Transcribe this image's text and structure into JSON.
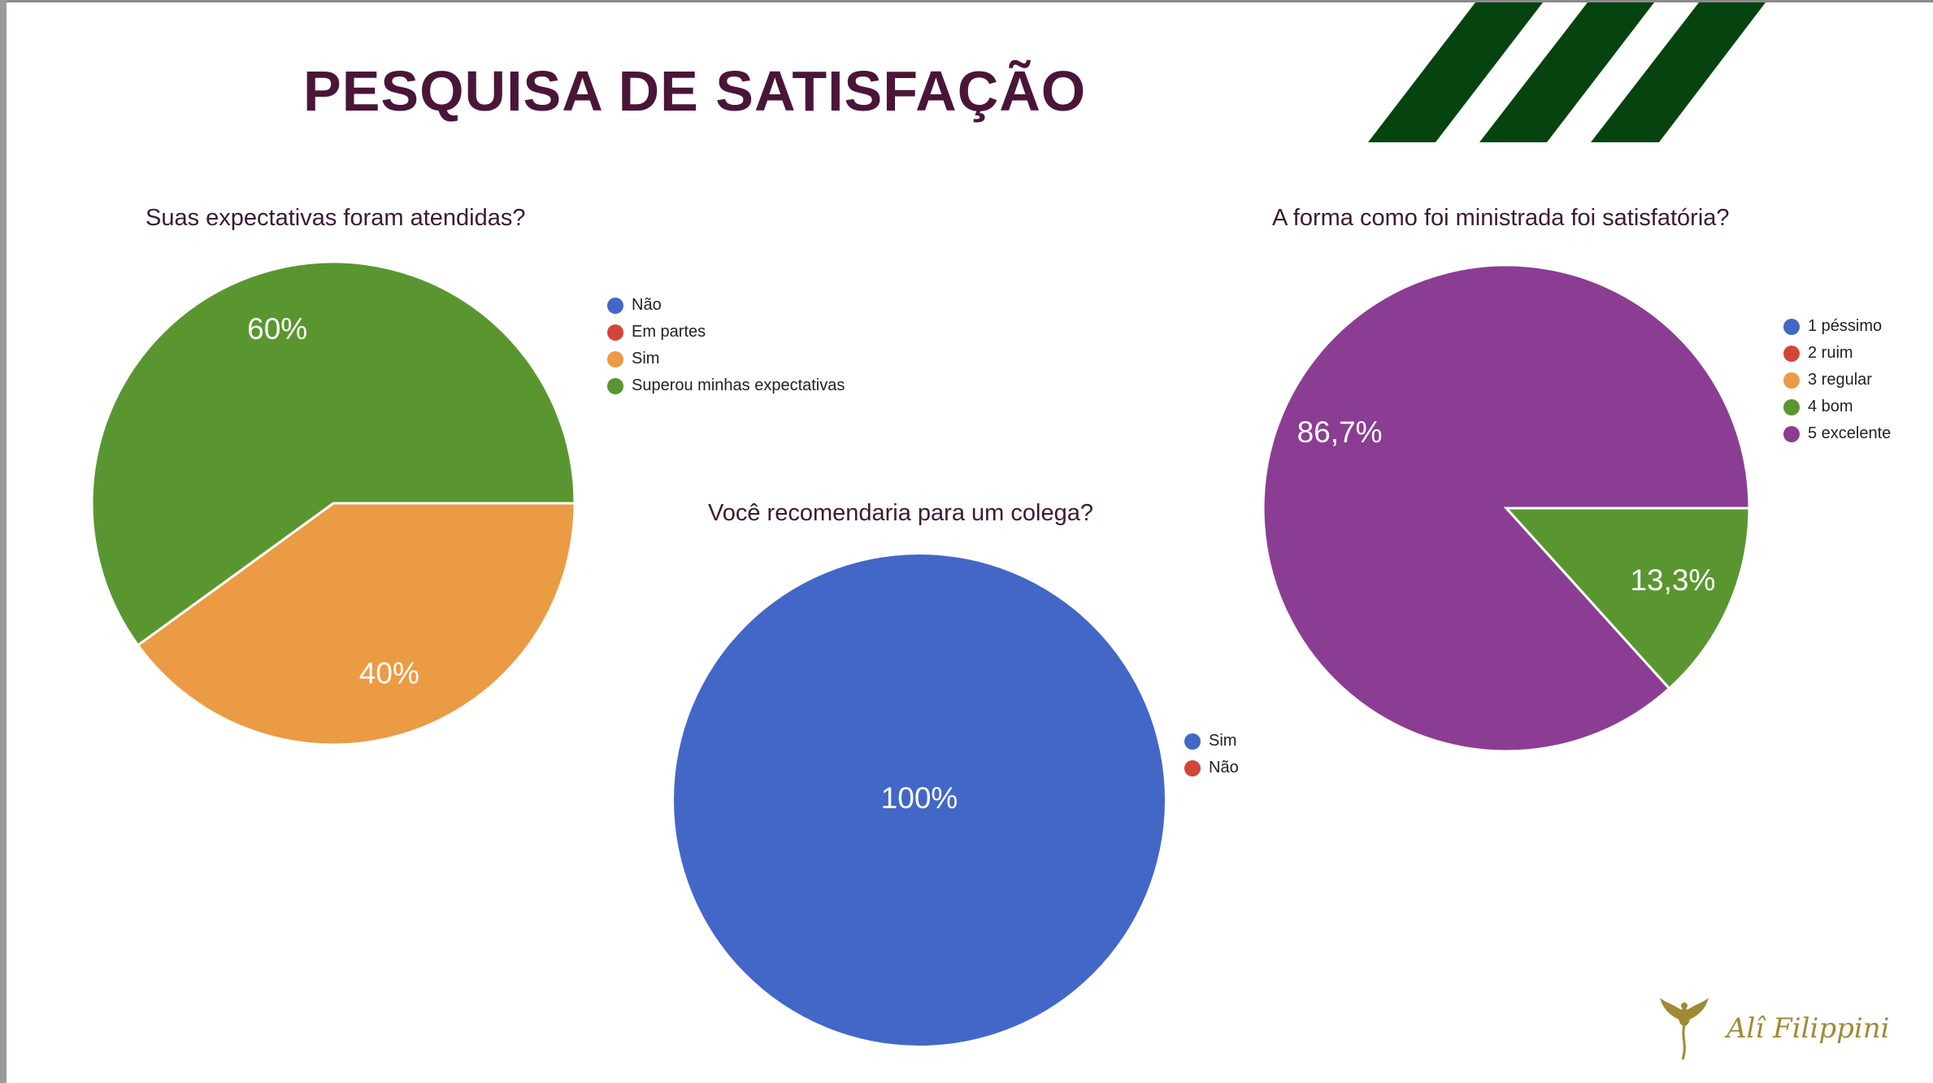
{
  "title": "PESQUISA DE SATISFAÇÃO",
  "brand_logo": "Alî Filippini",
  "colors": {
    "title": "#4a1538",
    "stripes": "#05440f",
    "blue": "#4267c6",
    "red": "#d2463a",
    "orange": "#eb9b44",
    "green": "#5a9630",
    "purple": "#8b3d93",
    "logo": "#a08a35"
  },
  "chart_data": [
    {
      "type": "pie",
      "title": "Suas expectativas foram atendidas?",
      "categories": [
        "Não",
        "Em partes",
        "Sim",
        "Superou minhas expectativas"
      ],
      "values": [
        0,
        0,
        40,
        60
      ],
      "labels": [
        "",
        "",
        "40%",
        "60%"
      ],
      "colors": [
        "#4267c6",
        "#d2463a",
        "#eb9b44",
        "#5a9630"
      ],
      "legend": "right"
    },
    {
      "type": "pie",
      "title": "Você recomendaria para um colega?",
      "categories": [
        "Sim",
        "Não"
      ],
      "values": [
        100,
        0
      ],
      "labels": [
        "100%",
        ""
      ],
      "colors": [
        "#4267c6",
        "#d2463a"
      ],
      "legend": "right"
    },
    {
      "type": "pie",
      "title": "A forma como foi ministrada foi satisfatória?",
      "categories": [
        "1 péssimo",
        "2 ruim",
        "3 regular",
        "4 bom",
        "5 excelente"
      ],
      "values": [
        0,
        0,
        0,
        13.3,
        86.7
      ],
      "labels": [
        "",
        "",
        "",
        "13,3%",
        "86,7%"
      ],
      "colors": [
        "#4267c6",
        "#d2463a",
        "#eb9b44",
        "#5a9630",
        "#8b3d93"
      ],
      "legend": "right"
    }
  ]
}
